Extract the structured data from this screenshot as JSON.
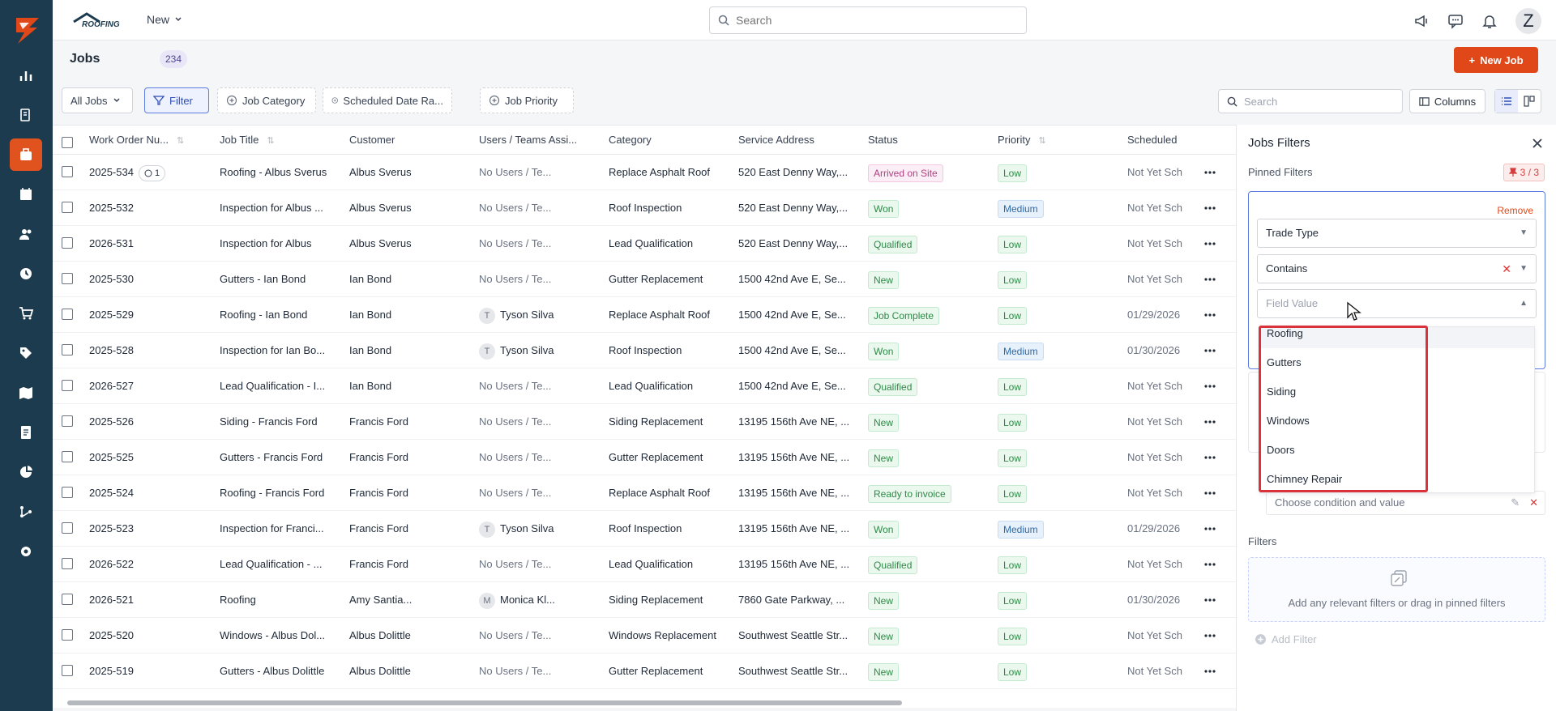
{
  "colors": {
    "rail": "#1d3b4f",
    "accent": "#e0481a",
    "filter_blue": "#5b7be0",
    "highlight_red": "#d9323b"
  },
  "rail": {
    "logo_icon": "brand-bolt-icon",
    "items": [
      {
        "name": "dashboard-icon"
      },
      {
        "name": "documents-icon"
      },
      {
        "name": "jobs-icon",
        "active": true
      },
      {
        "name": "calendar-icon"
      },
      {
        "name": "customers-icon"
      },
      {
        "name": "timesheet-icon"
      },
      {
        "name": "cart-icon"
      },
      {
        "name": "tags-icon"
      },
      {
        "name": "map-icon"
      },
      {
        "name": "invoice-icon"
      },
      {
        "name": "reports-icon"
      },
      {
        "name": "workflow-icon"
      },
      {
        "name": "settings-icon"
      }
    ]
  },
  "topbar": {
    "brand": "ROOFING",
    "new_label": "New",
    "search_placeholder": "Search",
    "avatar_initial": "Z"
  },
  "page": {
    "title": "Jobs",
    "count": "234",
    "new_job_label": "New Job"
  },
  "filterbar": {
    "all_jobs": "All Jobs",
    "filter": "Filter",
    "job_category": "Job Category",
    "scheduled_date": "Scheduled Date Ra...",
    "job_priority": "Job Priority",
    "search_placeholder": "Search",
    "columns": "Columns"
  },
  "table": {
    "headers": [
      "Work Order Nu...",
      "Job Title",
      "Customer",
      "Users / Teams Assi...",
      "Category",
      "Service Address",
      "Status",
      "Priority",
      "Scheduled"
    ],
    "rows": [
      {
        "wo": "2025-534",
        "comments": "1",
        "title": "Roofing - Albus Sverus",
        "customer": "Albus Sverus",
        "users": "No Users / Te...",
        "user_initial": "",
        "category": "Replace Asphalt Roof",
        "address": "520 East Denny Way,...",
        "status": "Arrived on Site",
        "status_class": "st-arrived",
        "priority": "Low",
        "priority_class": "pr-low",
        "scheduled": "Not Yet Sch"
      },
      {
        "wo": "2025-532",
        "comments": "",
        "title": "Inspection for Albus ...",
        "customer": "Albus Sverus",
        "users": "No Users / Te...",
        "user_initial": "",
        "category": "Roof Inspection",
        "address": "520 East Denny Way,...",
        "status": "Won",
        "status_class": "st-won",
        "priority": "Medium",
        "priority_class": "pr-medium",
        "scheduled": "Not Yet Sch"
      },
      {
        "wo": "2026-531",
        "comments": "",
        "title": "Inspection for Albus",
        "customer": "Albus Sverus",
        "users": "No Users / Te...",
        "user_initial": "",
        "category": "Lead Qualification",
        "address": "520 East Denny Way,...",
        "status": "Qualified",
        "status_class": "st-qualified",
        "priority": "Low",
        "priority_class": "pr-low",
        "scheduled": "Not Yet Sch"
      },
      {
        "wo": "2025-530",
        "comments": "",
        "title": "Gutters - Ian Bond",
        "customer": "Ian Bond",
        "users": "No Users / Te...",
        "user_initial": "",
        "category": "Gutter Replacement",
        "address": "1500 42nd Ave E, Se...",
        "status": "New",
        "status_class": "st-new",
        "priority": "Low",
        "priority_class": "pr-low",
        "scheduled": "Not Yet Sch"
      },
      {
        "wo": "2025-529",
        "comments": "",
        "title": "Roofing - Ian Bond",
        "customer": "Ian Bond",
        "users": "Tyson Silva",
        "user_initial": "T",
        "category": "Replace Asphalt Roof",
        "address": "1500 42nd Ave E, Se...",
        "status": "Job Complete",
        "status_class": "st-complete",
        "priority": "Low",
        "priority_class": "pr-low",
        "scheduled": "01/29/2026"
      },
      {
        "wo": "2025-528",
        "comments": "",
        "title": "Inspection for Ian Bo...",
        "customer": "Ian Bond",
        "users": "Tyson Silva",
        "user_initial": "T",
        "category": "Roof Inspection",
        "address": "1500 42nd Ave E, Se...",
        "status": "Won",
        "status_class": "st-won",
        "priority": "Medium",
        "priority_class": "pr-medium",
        "scheduled": "01/30/2026"
      },
      {
        "wo": "2026-527",
        "comments": "",
        "title": "Lead Qualification - I...",
        "customer": "Ian Bond",
        "users": "No Users / Te...",
        "user_initial": "",
        "category": "Lead Qualification",
        "address": "1500 42nd Ave E, Se...",
        "status": "Qualified",
        "status_class": "st-qualified",
        "priority": "Low",
        "priority_class": "pr-low",
        "scheduled": "Not Yet Sch"
      },
      {
        "wo": "2025-526",
        "comments": "",
        "title": "Siding - Francis Ford",
        "customer": "Francis Ford",
        "users": "No Users / Te...",
        "user_initial": "",
        "category": "Siding Replacement",
        "address": "13195 156th Ave NE, ...",
        "status": "New",
        "status_class": "st-new",
        "priority": "Low",
        "priority_class": "pr-low",
        "scheduled": "Not Yet Sch"
      },
      {
        "wo": "2025-525",
        "comments": "",
        "title": "Gutters - Francis Ford",
        "customer": "Francis Ford",
        "users": "No Users / Te...",
        "user_initial": "",
        "category": "Gutter Replacement",
        "address": "13195 156th Ave NE, ...",
        "status": "New",
        "status_class": "st-new",
        "priority": "Low",
        "priority_class": "pr-low",
        "scheduled": "Not Yet Sch"
      },
      {
        "wo": "2025-524",
        "comments": "",
        "title": "Roofing - Francis Ford",
        "customer": "Francis Ford",
        "users": "No Users / Te...",
        "user_initial": "",
        "category": "Replace Asphalt Roof",
        "address": "13195 156th Ave NE, ...",
        "status": "Ready to invoice",
        "status_class": "st-invoice",
        "priority": "Low",
        "priority_class": "pr-low",
        "scheduled": "Not Yet Sch"
      },
      {
        "wo": "2025-523",
        "comments": "",
        "title": "Inspection for Franci...",
        "customer": "Francis Ford",
        "users": "Tyson Silva",
        "user_initial": "T",
        "category": "Roof Inspection",
        "address": "13195 156th Ave NE, ...",
        "status": "Won",
        "status_class": "st-won",
        "priority": "Medium",
        "priority_class": "pr-medium",
        "scheduled": "01/29/2026"
      },
      {
        "wo": "2026-522",
        "comments": "",
        "title": "Lead Qualification - ...",
        "customer": "Francis Ford",
        "users": "No Users / Te...",
        "user_initial": "",
        "category": "Lead Qualification",
        "address": "13195 156th Ave NE, ...",
        "status": "Qualified",
        "status_class": "st-qualified",
        "priority": "Low",
        "priority_class": "pr-low",
        "scheduled": "Not Yet Sch"
      },
      {
        "wo": "2026-521",
        "comments": "",
        "title": "Roofing",
        "customer": "Amy Santia...",
        "users": "Monica Kl...",
        "user_initial": "M",
        "category": "Siding Replacement",
        "address": "7860 Gate Parkway, ...",
        "status": "New",
        "status_class": "st-new",
        "priority": "Low",
        "priority_class": "pr-low",
        "scheduled": "01/30/2026"
      },
      {
        "wo": "2025-520",
        "comments": "",
        "title": "Windows - Albus Dol...",
        "customer": "Albus Dolittle",
        "users": "No Users / Te...",
        "user_initial": "",
        "category": "Windows Replacement",
        "address": "Southwest Seattle Str...",
        "status": "New",
        "status_class": "st-new",
        "priority": "Low",
        "priority_class": "pr-low",
        "scheduled": "Not Yet Sch"
      },
      {
        "wo": "2025-519",
        "comments": "",
        "title": "Gutters - Albus Dolittle",
        "customer": "Albus Dolittle",
        "users": "No Users / Te...",
        "user_initial": "",
        "category": "Gutter Replacement",
        "address": "Southwest Seattle Str...",
        "status": "New",
        "status_class": "st-new",
        "priority": "Low",
        "priority_class": "pr-low",
        "scheduled": "Not Yet Sch"
      }
    ]
  },
  "panel": {
    "title": "Jobs Filters",
    "pinned_label": "Pinned Filters",
    "pin_count": "3 / 3",
    "remove_label": "Remove",
    "field_select": "Trade Type",
    "operator_select": "Contains",
    "value_placeholder": "Field Value",
    "options": [
      "Roofing",
      "Gutters",
      "Siding",
      "Windows",
      "Doors",
      "Chimney Repair"
    ],
    "condition_placeholder": "Choose condition and value",
    "filters_label": "Filters",
    "drop_hint": "Add any relevant filters or drag in pinned filters",
    "add_filter_label": "Add Filter"
  }
}
